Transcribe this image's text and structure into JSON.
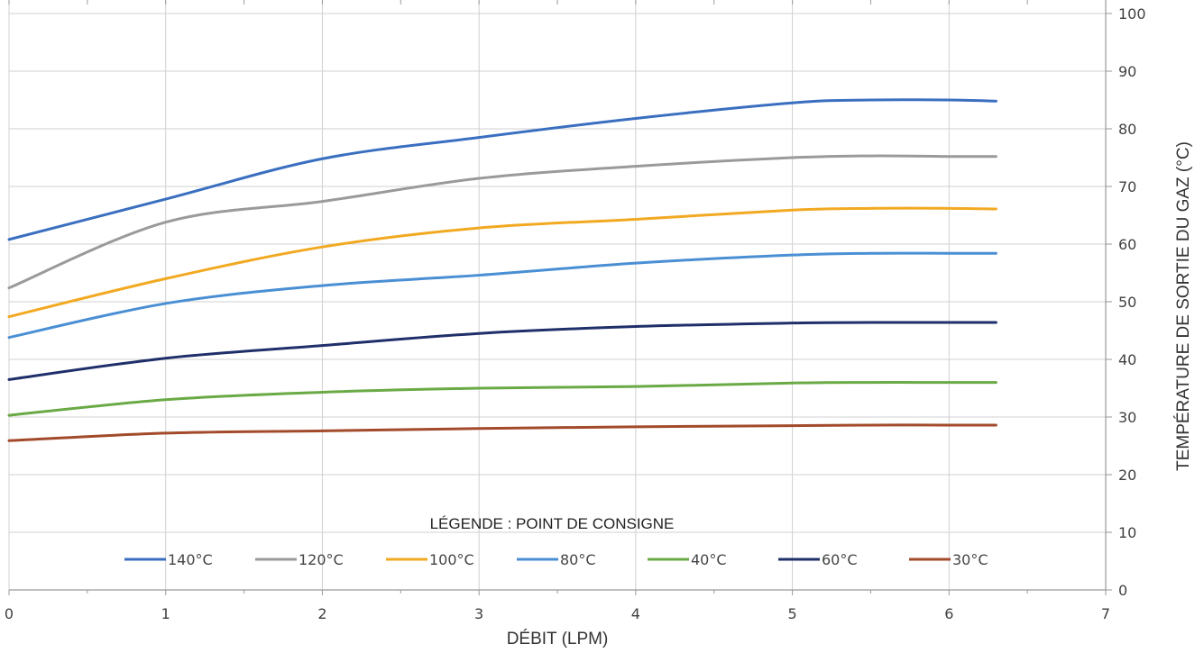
{
  "chart_data": {
    "type": "line",
    "xlabel": "DÉBIT (LPM)",
    "ylabel": "TEMPÉRATURE DE SORTIE DU GAZ (°C)",
    "xlim": [
      0,
      7
    ],
    "ylim": [
      0,
      100
    ],
    "x_ticks": [
      "0",
      "1",
      "2",
      "3",
      "4",
      "5",
      "6",
      "7"
    ],
    "y_ticks": [
      "0",
      "10",
      "20",
      "30",
      "40",
      "50",
      "60",
      "70",
      "80",
      "90",
      "100"
    ],
    "y_axis_side": "right",
    "grid": true,
    "legend_title": "LÉGENDE : POINT DE CONSIGNE",
    "legend_position": "bottom",
    "x": [
      0,
      1,
      2,
      3,
      4,
      5,
      5.5,
      6,
      6.3
    ],
    "series": [
      {
        "name": "140°C",
        "color": "#3a6fc0",
        "values": [
          60.8,
          67.8,
          74.8,
          78.5,
          81.8,
          84.5,
          85.0,
          85.0,
          84.8
        ]
      },
      {
        "name": "120°C",
        "color": "#9a9a9a",
        "values": [
          52.4,
          63.8,
          67.4,
          71.4,
          73.5,
          75.0,
          75.3,
          75.2,
          75.2
        ]
      },
      {
        "name": "100°C",
        "color": "#f2a922",
        "values": [
          47.4,
          54.0,
          59.5,
          62.8,
          64.3,
          65.9,
          66.2,
          66.2,
          66.1
        ]
      },
      {
        "name": "80°C",
        "color": "#4a8fd4",
        "values": [
          43.8,
          49.7,
          52.8,
          54.6,
          56.7,
          58.1,
          58.4,
          58.4,
          58.4
        ]
      },
      {
        "name": "40°C",
        "color": "#6aaa45",
        "values": [
          30.3,
          33.0,
          34.3,
          35.0,
          35.3,
          35.9,
          36.0,
          36.0,
          36.0
        ]
      },
      {
        "name": "60°C",
        "color": "#1f2f6a",
        "values": [
          36.5,
          40.2,
          42.4,
          44.5,
          45.7,
          46.3,
          46.4,
          46.4,
          46.4
        ]
      },
      {
        "name": "30°C",
        "color": "#a24a2a",
        "values": [
          25.9,
          27.2,
          27.6,
          28.0,
          28.3,
          28.5,
          28.6,
          28.6,
          28.6
        ]
      }
    ]
  }
}
